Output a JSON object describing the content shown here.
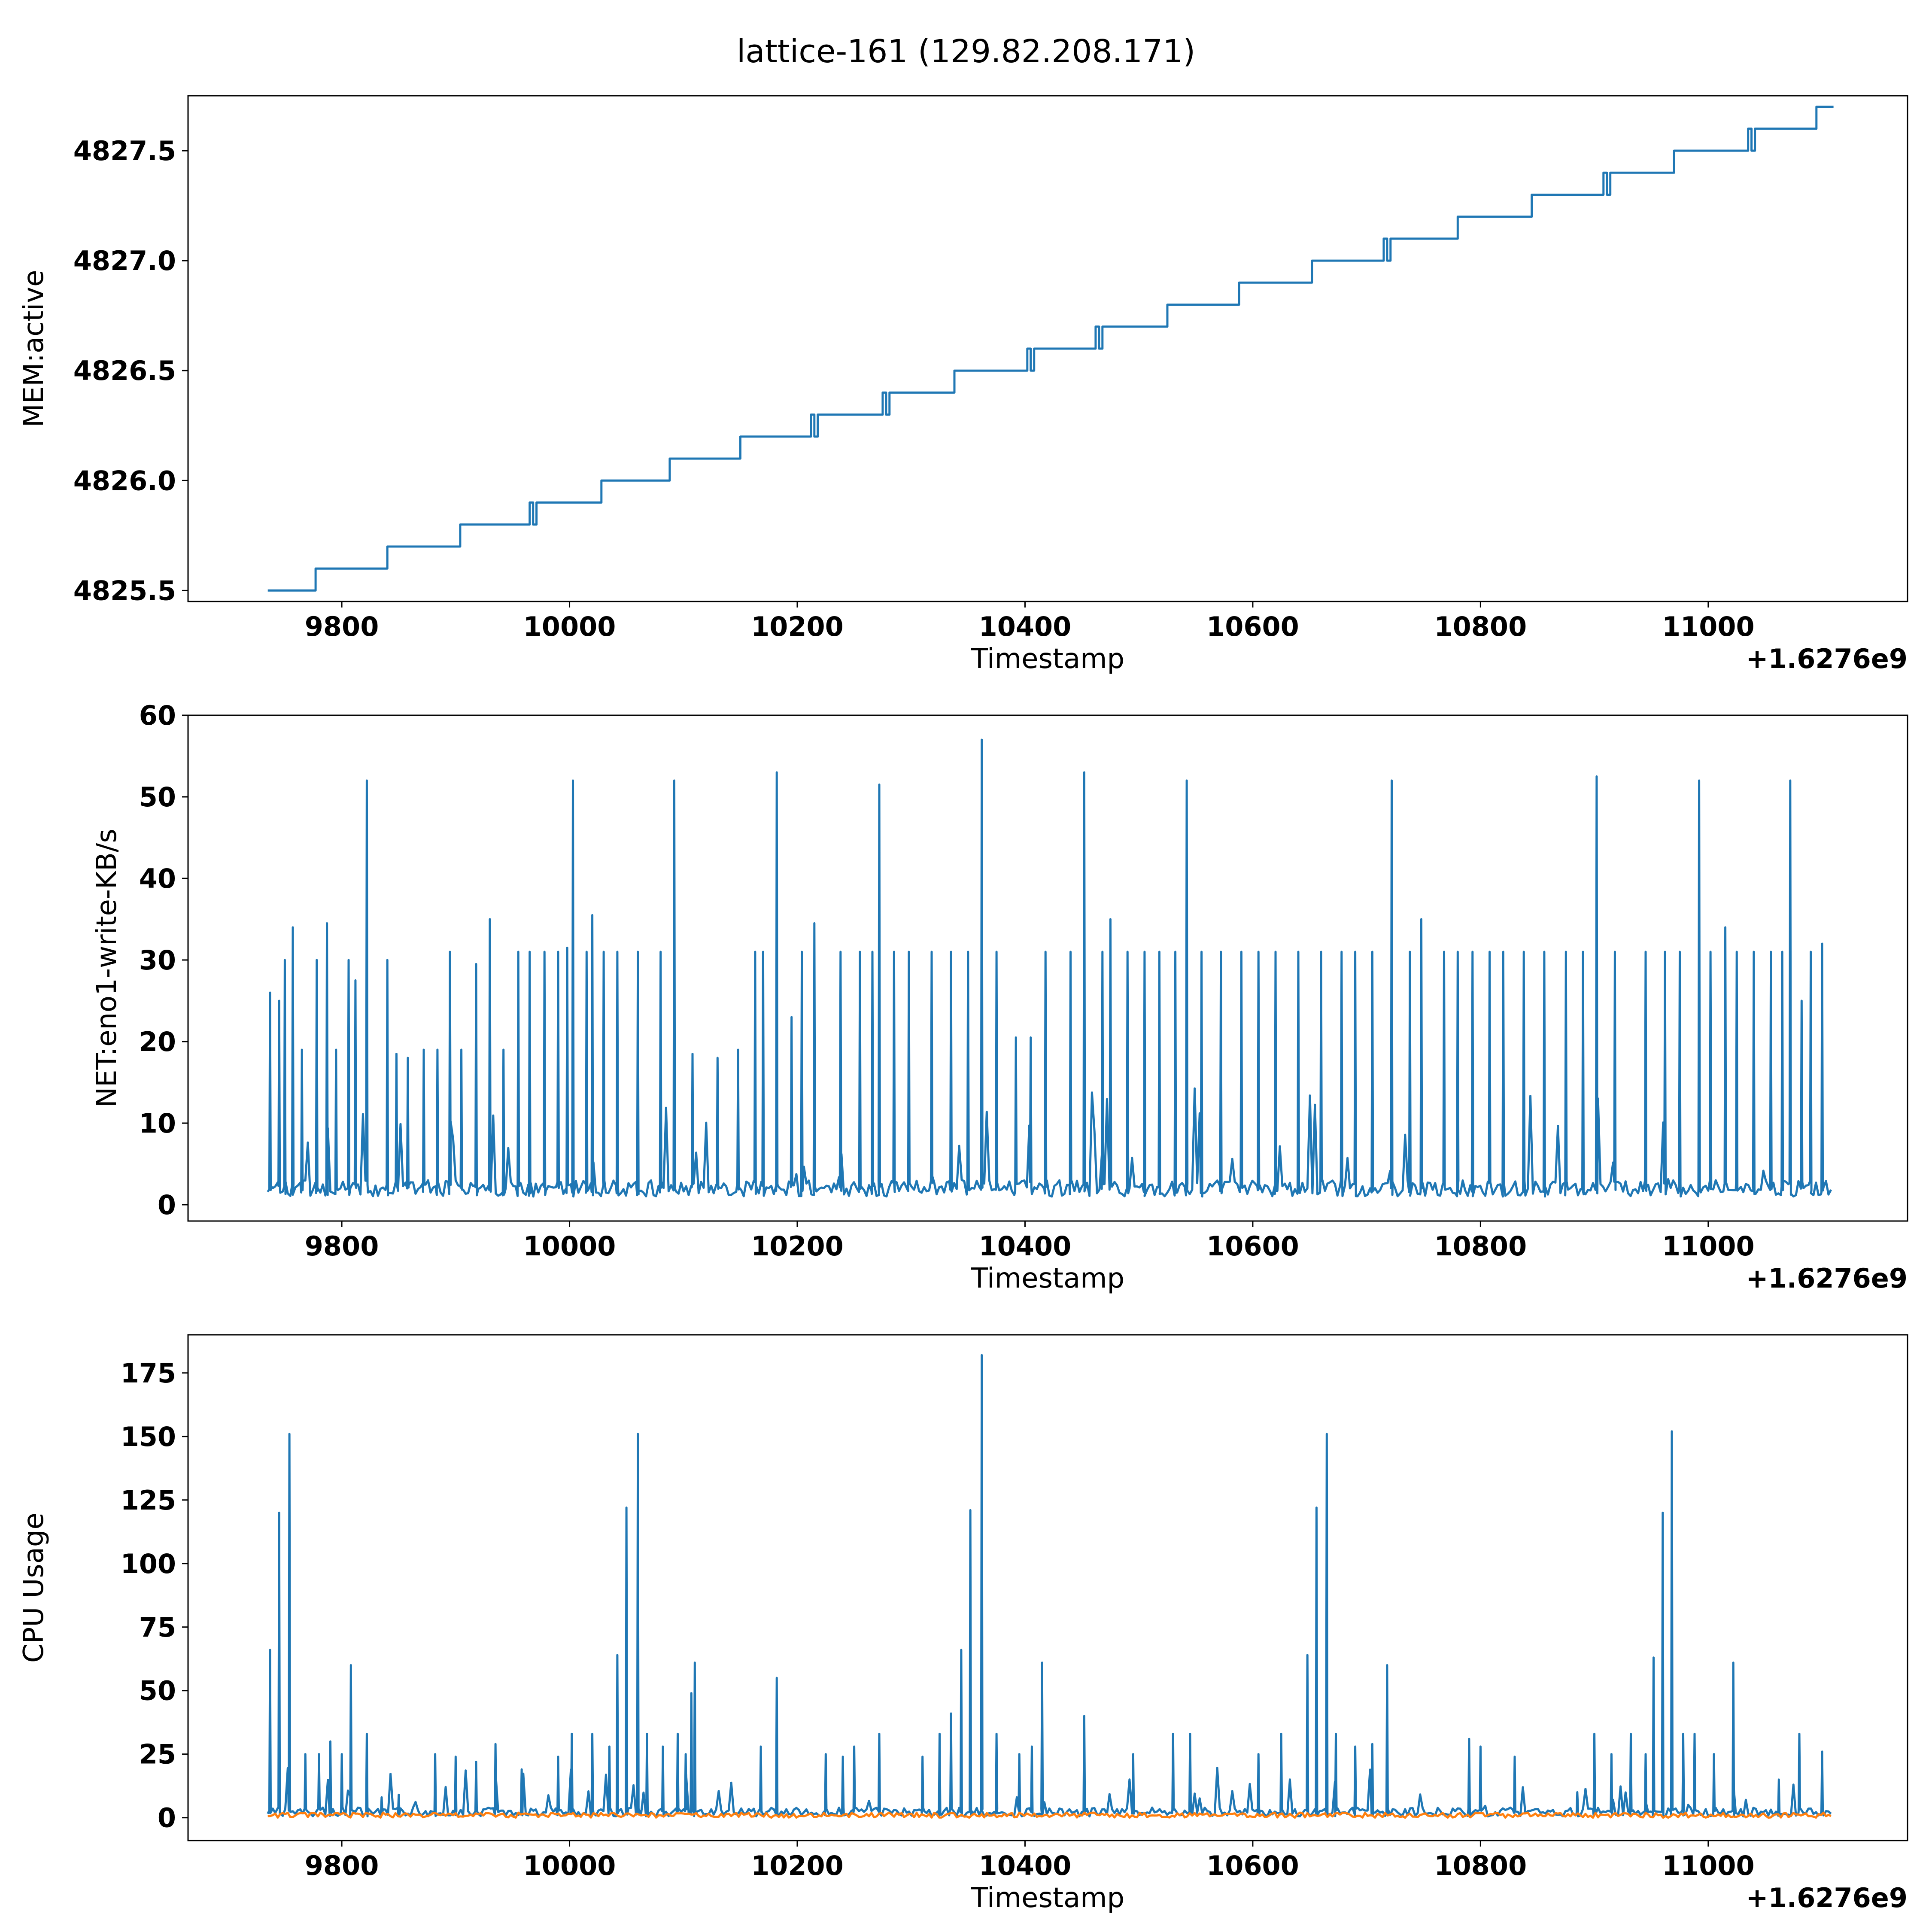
{
  "figure": {
    "title": "lattice-161 (129.82.208.171)"
  },
  "chart_data": [
    {
      "type": "line",
      "title": "",
      "xlabel": "Timestamp",
      "ylabel": "MEM:active",
      "x_offset_label": "+1.6276e9",
      "xlim": [
        9665,
        11175
      ],
      "ylim": [
        4825.45,
        4827.75
      ],
      "x_ticks": [
        9800,
        10000,
        10200,
        10400,
        10600,
        10800,
        11000
      ],
      "y_ticks": [
        4825.5,
        4826.0,
        4826.5,
        4827.0,
        4827.5
      ],
      "y_tick_labels": [
        "4825.5",
        "4826.0",
        "4826.5",
        "4827.0",
        "4827.5"
      ],
      "grid": false,
      "series": [
        {
          "color": "#1f77b4",
          "kind": "step",
          "x": [
            9735,
            9777,
            9840,
            9904,
            9965,
            10028,
            10088,
            10150,
            10212,
            10275,
            10338,
            10402,
            10462,
            10525,
            10588,
            10652,
            10715,
            10780,
            10845,
            10908,
            10970,
            11035,
            11095,
            11110
          ],
          "values": [
            4825.5,
            4825.6,
            4825.7,
            4825.8,
            4825.9,
            4826.0,
            4826.1,
            4826.2,
            4826.3,
            4826.4,
            4826.5,
            4826.6,
            4826.7,
            4826.8,
            4826.9,
            4827.0,
            4827.1,
            4827.2,
            4827.3,
            4827.4,
            4827.5,
            4827.6,
            4827.7,
            4827.7
          ],
          "dips": [
            [
              9965,
              4825.8
            ],
            [
              10212,
              4826.2
            ],
            [
              10275,
              4826.3
            ],
            [
              10402,
              4826.5
            ],
            [
              10462,
              4826.6
            ],
            [
              10470,
              4826.6
            ],
            [
              10715,
              4827.0
            ],
            [
              10908,
              4827.3
            ],
            [
              10915,
              4827.3
            ],
            [
              11035,
              4827.5
            ]
          ]
        }
      ]
    },
    {
      "type": "line",
      "title": "",
      "xlabel": "Timestamp",
      "ylabel": "NET:eno1-write-KB/s",
      "x_offset_label": "+1.6276e9",
      "xlim": [
        9665,
        11175
      ],
      "ylim": [
        -2,
        60
      ],
      "x_ticks": [
        9800,
        10000,
        10200,
        10400,
        10600,
        10800,
        11000
      ],
      "y_ticks": [
        0,
        10,
        20,
        30,
        40,
        50,
        60
      ],
      "y_tick_labels": [
        "0",
        "10",
        "20",
        "30",
        "40",
        "50",
        "60"
      ],
      "grid": false,
      "series": [
        {
          "color": "#1f77b4",
          "x_start": 9735,
          "x_end": 11110,
          "baseline": [
            1,
            3
          ],
          "spikes": [
            [
              9737,
              26
            ],
            [
              9745,
              25
            ],
            [
              9750,
              30
            ],
            [
              9757,
              34
            ],
            [
              9765,
              19
            ],
            [
              9778,
              30
            ],
            [
              9787,
              34.5
            ],
            [
              9795,
              19
            ],
            [
              9806,
              30
            ],
            [
              9812,
              27.5
            ],
            [
              9822,
              52
            ],
            [
              9840,
              30
            ],
            [
              9848,
              18.5
            ],
            [
              9858,
              18
            ],
            [
              9872,
              19
            ],
            [
              9884,
              19
            ],
            [
              9895,
              31
            ],
            [
              9905,
              19
            ],
            [
              9918,
              29.5
            ],
            [
              9930,
              35
            ],
            [
              9942,
              19
            ],
            [
              9955,
              31
            ],
            [
              9965,
              31
            ],
            [
              9978,
              31
            ],
            [
              9990,
              31
            ],
            [
              9998,
              31.5
            ],
            [
              10003,
              52
            ],
            [
              10015,
              31
            ],
            [
              10020,
              35.5
            ],
            [
              10030,
              31
            ],
            [
              10042,
              31
            ],
            [
              10060,
              31
            ],
            [
              10080,
              31
            ],
            [
              10092,
              52
            ],
            [
              10108,
              18.5
            ],
            [
              10130,
              18
            ],
            [
              10148,
              19
            ],
            [
              10163,
              31
            ],
            [
              10170,
              31
            ],
            [
              10182,
              53
            ],
            [
              10195,
              23
            ],
            [
              10204,
              31
            ],
            [
              10215,
              34.5
            ],
            [
              10238,
              31
            ],
            [
              10255,
              31
            ],
            [
              10266,
              31
            ],
            [
              10272,
              51.5
            ],
            [
              10285,
              31
            ],
            [
              10298,
              31
            ],
            [
              10318,
              31
            ],
            [
              10335,
              31
            ],
            [
              10350,
              31
            ],
            [
              10362,
              57
            ],
            [
              10375,
              31
            ],
            [
              10392,
              20.5
            ],
            [
              10405,
              20.5
            ],
            [
              10418,
              31
            ],
            [
              10440,
              31
            ],
            [
              10452,
              53
            ],
            [
              10468,
              31
            ],
            [
              10475,
              35
            ],
            [
              10490,
              31
            ],
            [
              10505,
              31
            ],
            [
              10518,
              31
            ],
            [
              10532,
              31
            ],
            [
              10542,
              52
            ],
            [
              10555,
              31
            ],
            [
              10572,
              31
            ],
            [
              10590,
              31
            ],
            [
              10605,
              31
            ],
            [
              10620,
              31
            ],
            [
              10640,
              31
            ],
            [
              10660,
              31
            ],
            [
              10678,
              31
            ],
            [
              10690,
              31
            ],
            [
              10705,
              31
            ],
            [
              10722,
              52
            ],
            [
              10738,
              31
            ],
            [
              10748,
              35
            ],
            [
              10768,
              31
            ],
            [
              10780,
              31
            ],
            [
              10793,
              31
            ],
            [
              10808,
              31
            ],
            [
              10820,
              31
            ],
            [
              10838,
              31
            ],
            [
              10856,
              31
            ],
            [
              10875,
              31
            ],
            [
              10890,
              31
            ],
            [
              10902,
              52.5
            ],
            [
              10918,
              31
            ],
            [
              10945,
              31
            ],
            [
              10962,
              31
            ],
            [
              10975,
              31
            ],
            [
              10992,
              52
            ],
            [
              11002,
              31
            ],
            [
              11015,
              34
            ],
            [
              11025,
              31
            ],
            [
              11040,
              31
            ],
            [
              11055,
              31
            ],
            [
              11065,
              31
            ],
            [
              11072,
              52
            ],
            [
              11082,
              25
            ],
            [
              11090,
              31
            ],
            [
              11100,
              32
            ],
            [
              11109,
              19
            ]
          ]
        }
      ]
    },
    {
      "type": "line",
      "title": "",
      "xlabel": "Timestamp",
      "ylabel": "CPU Usage",
      "x_offset_label": "+1.6276e9",
      "xlim": [
        9665,
        11175
      ],
      "ylim": [
        -9,
        190
      ],
      "x_ticks": [
        9800,
        10000,
        10200,
        10400,
        10600,
        10800,
        11000
      ],
      "y_ticks": [
        0,
        25,
        50,
        75,
        100,
        125,
        150,
        175
      ],
      "y_tick_labels": [
        "0",
        "25",
        "50",
        "75",
        "100",
        "125",
        "150",
        "175"
      ],
      "grid": false,
      "series": [
        {
          "color": "#1f77b4",
          "x_start": 9735,
          "x_end": 11110,
          "baseline": [
            0.5,
            4
          ],
          "spikes": [
            [
              9737,
              66
            ],
            [
              9745,
              120
            ],
            [
              9754,
              151
            ],
            [
              9768,
              25
            ],
            [
              9780,
              25
            ],
            [
              9790,
              30
            ],
            [
              9800,
              25
            ],
            [
              9808,
              60
            ],
            [
              9822,
              33
            ],
            [
              9835,
              8
            ],
            [
              9850,
              9
            ],
            [
              9882,
              25
            ],
            [
              9900,
              24
            ],
            [
              9918,
              22
            ],
            [
              9935,
              29
            ],
            [
              9958,
              19
            ],
            [
              9990,
              24
            ],
            [
              10002,
              33
            ],
            [
              10020,
              33
            ],
            [
              10035,
              28
            ],
            [
              10042,
              64
            ],
            [
              10050,
              122
            ],
            [
              10060,
              151
            ],
            [
              10068,
              33
            ],
            [
              10082,
              28
            ],
            [
              10095,
              33
            ],
            [
              10102,
              25
            ],
            [
              10107,
              49
            ],
            [
              10110,
              61
            ],
            [
              10168,
              28
            ],
            [
              10182,
              55
            ],
            [
              10225,
              25
            ],
            [
              10240,
              24
            ],
            [
              10250,
              28
            ],
            [
              10272,
              33
            ],
            [
              10310,
              24
            ],
            [
              10325,
              33
            ],
            [
              10335,
              41
            ],
            [
              10344,
              66
            ],
            [
              10352,
              121
            ],
            [
              10362,
              182
            ],
            [
              10375,
              33
            ],
            [
              10395,
              25
            ],
            [
              10406,
              28
            ],
            [
              10415,
              61
            ],
            [
              10452,
              40
            ],
            [
              10495,
              25
            ],
            [
              10530,
              33
            ],
            [
              10545,
              33
            ],
            [
              10605,
              25
            ],
            [
              10625,
              33
            ],
            [
              10648,
              64
            ],
            [
              10656,
              122
            ],
            [
              10665,
              151
            ],
            [
              10673,
              33
            ],
            [
              10690,
              28
            ],
            [
              10705,
              29
            ],
            [
              10718,
              60
            ],
            [
              10790,
              31
            ],
            [
              10800,
              28
            ],
            [
              10830,
              24
            ],
            [
              10885,
              10
            ],
            [
              10900,
              33
            ],
            [
              10915,
              25
            ],
            [
              10932,
              33
            ],
            [
              10945,
              25
            ],
            [
              10952,
              63
            ],
            [
              10960,
              120
            ],
            [
              10968,
              152
            ],
            [
              10978,
              33
            ],
            [
              10988,
              33
            ],
            [
              11005,
              25
            ],
            [
              11022,
              61
            ],
            [
              11062,
              15
            ],
            [
              11080,
              33
            ],
            [
              11100,
              26
            ],
            [
              11109,
              8
            ]
          ]
        },
        {
          "color": "#ff7f0e",
          "x_start": 9735,
          "x_end": 11110,
          "baseline": [
            0,
            2
          ]
        }
      ]
    }
  ]
}
